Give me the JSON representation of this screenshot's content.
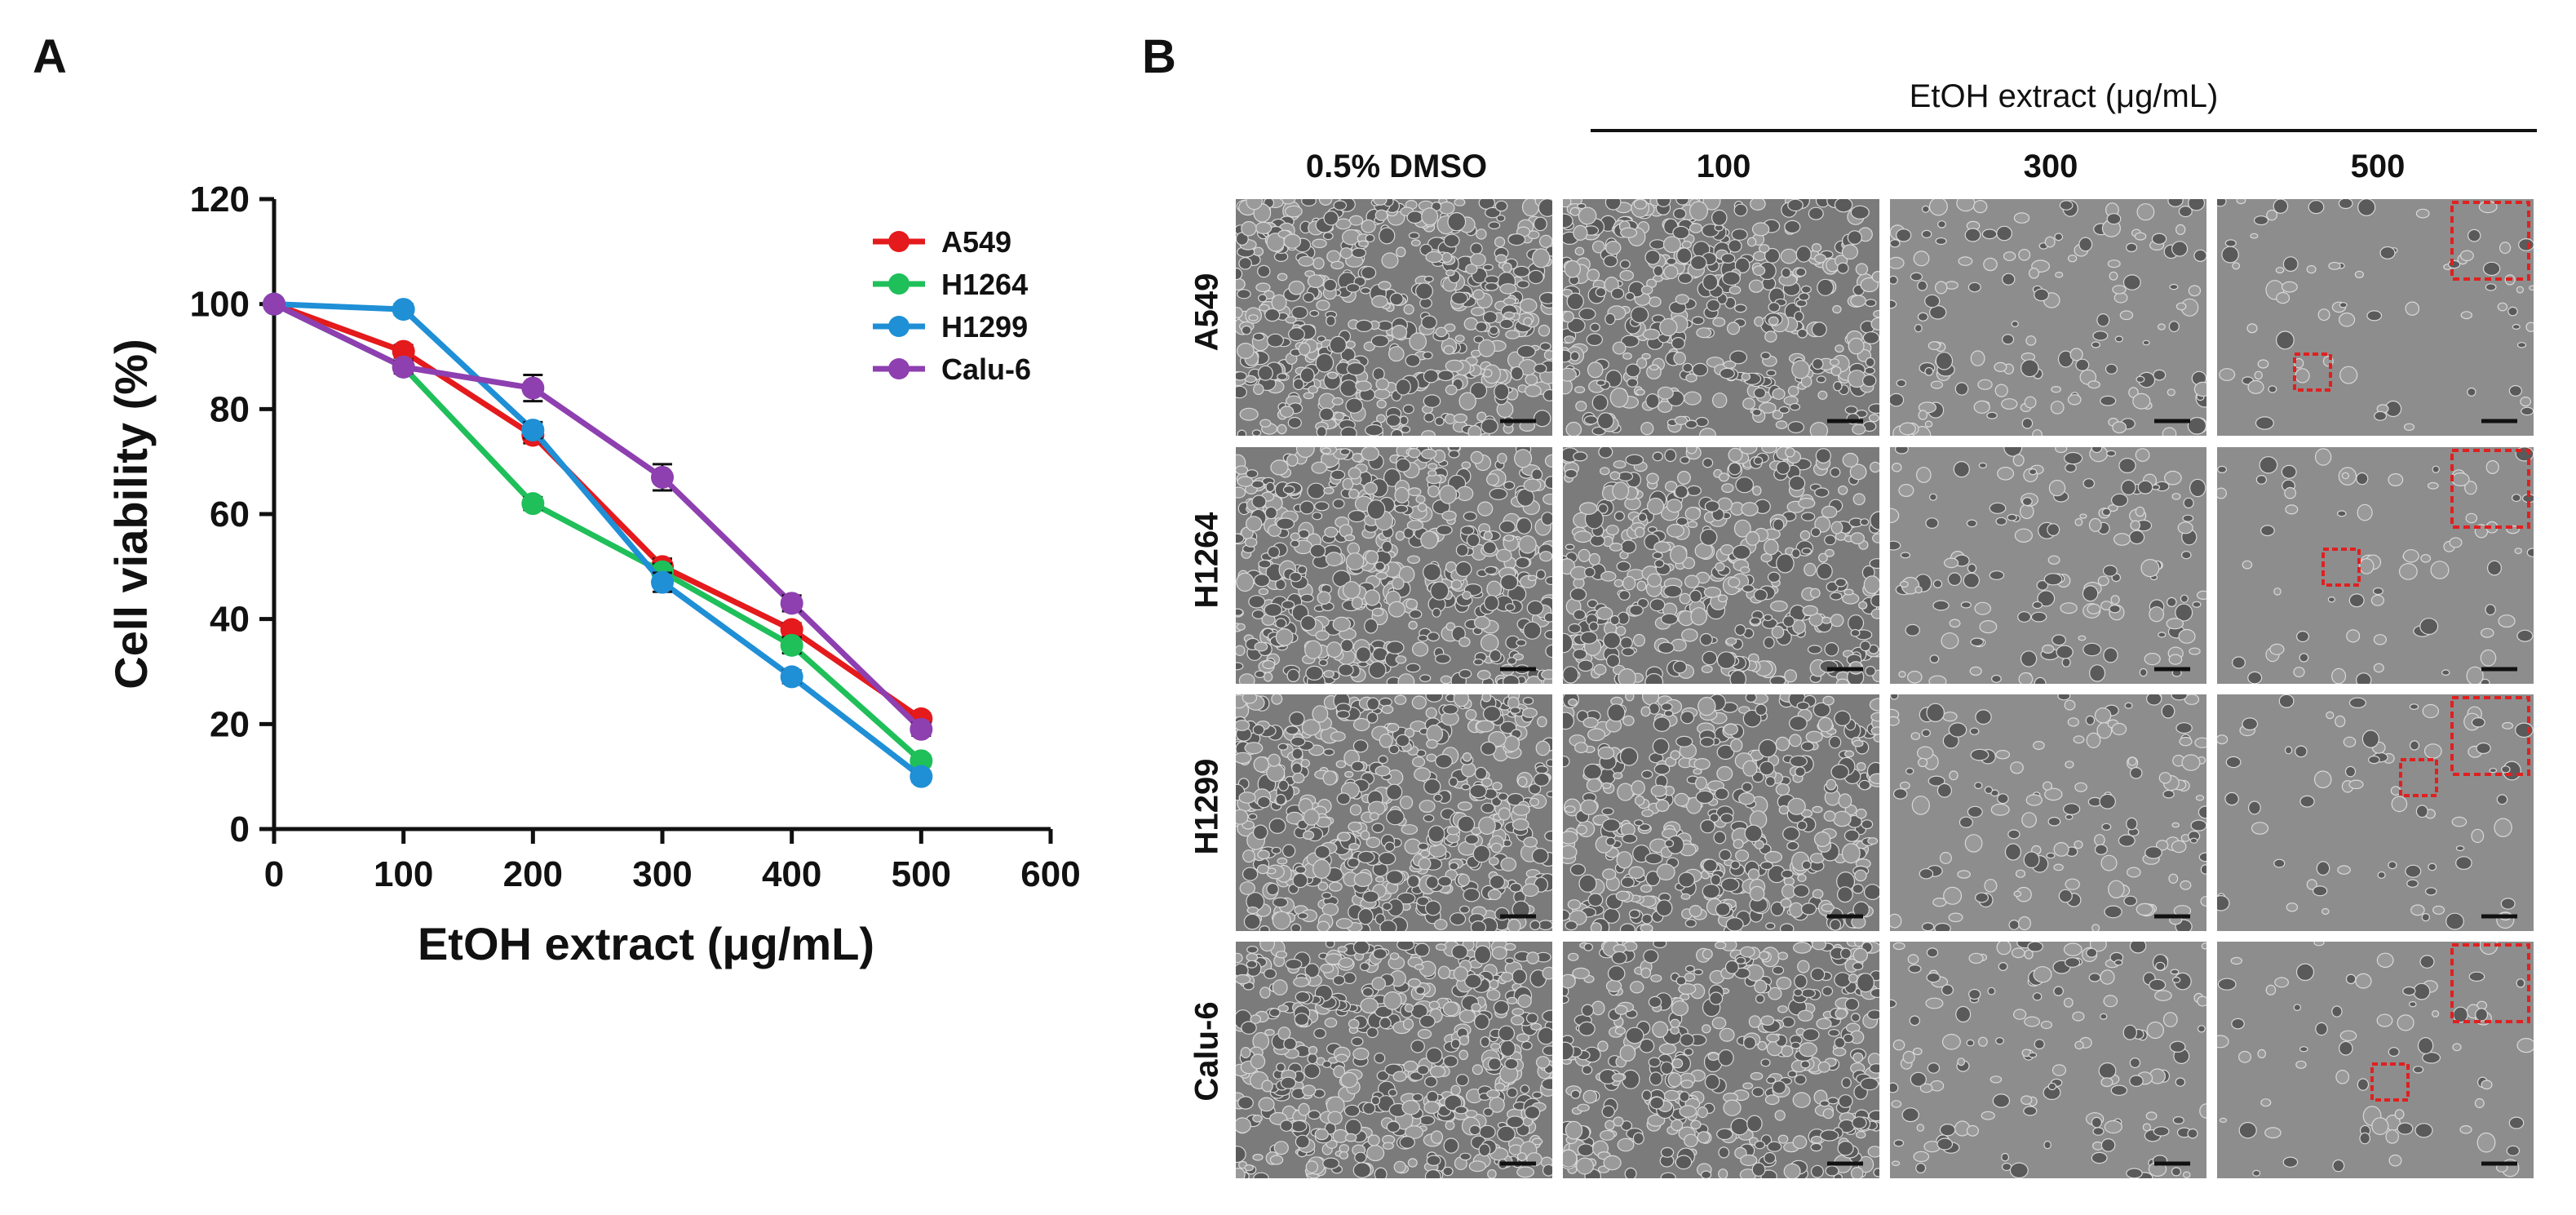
{
  "panel_labels": {
    "a": "A",
    "b": "B"
  },
  "chart_data": {
    "type": "line",
    "title": "",
    "xlabel": "EtOH extract (μg/mL)",
    "ylabel": "Cell viability (%)",
    "xlim": [
      0,
      600
    ],
    "ylim": [
      0,
      120
    ],
    "xticks": [
      0,
      100,
      200,
      300,
      400,
      500,
      600
    ],
    "yticks": [
      0,
      20,
      40,
      60,
      80,
      100,
      120
    ],
    "grid": false,
    "legend_position": "top-right",
    "x": [
      0,
      100,
      200,
      300,
      400,
      500
    ],
    "series": [
      {
        "name": "A549",
        "color": "#e41a1c",
        "values": [
          100,
          91,
          75,
          50,
          38,
          21
        ],
        "errors": [
          0.8,
          1.2,
          1.5,
          1.5,
          1.2,
          1.0
        ]
      },
      {
        "name": "H1264",
        "color": "#1fbf5a",
        "values": [
          100,
          88,
          62,
          49,
          35,
          13
        ],
        "errors": [
          0.8,
          1.0,
          1.2,
          1.5,
          1.5,
          1.0
        ]
      },
      {
        "name": "H1299",
        "color": "#1f8fd6",
        "values": [
          100,
          99,
          76,
          47,
          29,
          10
        ],
        "errors": [
          0.8,
          1.0,
          1.5,
          1.8,
          1.2,
          1.0
        ]
      },
      {
        "name": "Calu-6",
        "color": "#8e3fb0",
        "values": [
          100,
          88,
          84,
          67,
          43,
          19
        ],
        "errors": [
          0.8,
          1.2,
          2.5,
          2.5,
          1.5,
          1.2
        ]
      }
    ]
  },
  "panel_b": {
    "bracket_label": "EtOH extract (μg/mL)",
    "columns": [
      "0.5% DMSO",
      "100",
      "300",
      "500"
    ],
    "rows": [
      "A549",
      "H1264",
      "H1299",
      "Calu-6"
    ]
  }
}
